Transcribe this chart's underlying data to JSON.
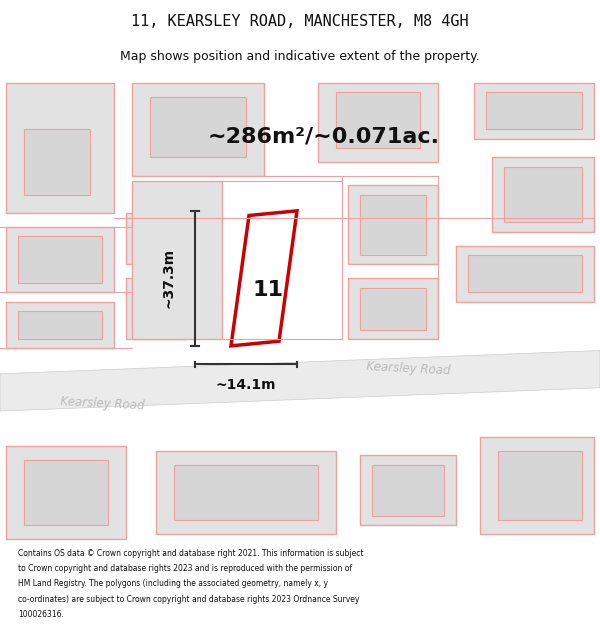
{
  "title_line1": "11, KEARSLEY ROAD, MANCHESTER, M8 4GH",
  "title_line2": "Map shows position and indicative extent of the property.",
  "area_text": "~286m²/~0.071ac.",
  "label_number": "11",
  "dim_vertical": "~37.3m",
  "dim_horizontal": "~14.1m",
  "road_label1": "Kearsley Road",
  "road_label2": "Kearsley Road",
  "footer_lines": [
    "Contains OS data © Crown copyright and database right 2021. This information is subject",
    "to Crown copyright and database rights 2023 and is reproduced with the permission of",
    "HM Land Registry. The polygons (including the associated geometry, namely x, y",
    "co-ordinates) are subject to Crown copyright and database rights 2023 Ordnance Survey",
    "100026316."
  ],
  "bg_color": "#ffffff",
  "map_bg": "#f7f7f7",
  "building_fill": "#e2e2e2",
  "building_edge_light": "#f0a0a0",
  "highlight_fill": "#ffffff",
  "highlight_edge": "#cc0000",
  "dim_line_color": "#333333",
  "text_dark": "#111111",
  "road_fill": "#ebebeb",
  "road_edge": "#cccccc",
  "road_text": "#bbbbbb"
}
